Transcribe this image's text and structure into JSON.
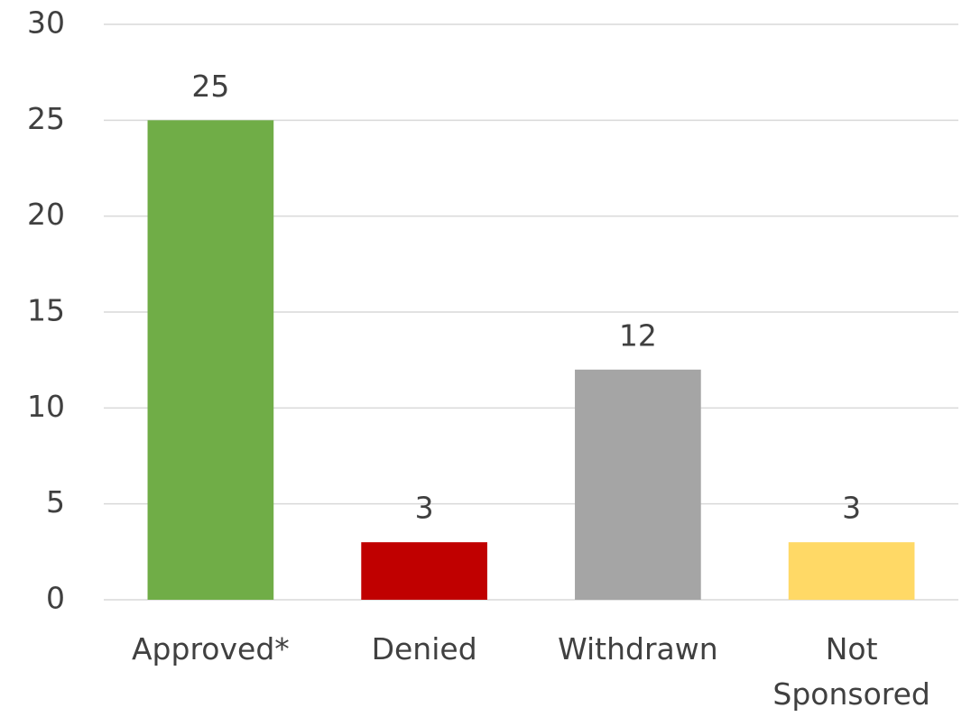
{
  "chart_data": {
    "type": "bar",
    "categories": [
      "Approved*",
      "Denied",
      "Withdrawn",
      "Not Sponsored"
    ],
    "values": [
      25,
      3,
      12,
      3
    ],
    "colors": [
      "#70ad47",
      "#c00000",
      "#a5a5a5",
      "#ffd966"
    ],
    "ylim": [
      0,
      30
    ],
    "yticks": [
      0,
      5,
      10,
      15,
      20,
      25,
      30
    ],
    "grid": true
  }
}
